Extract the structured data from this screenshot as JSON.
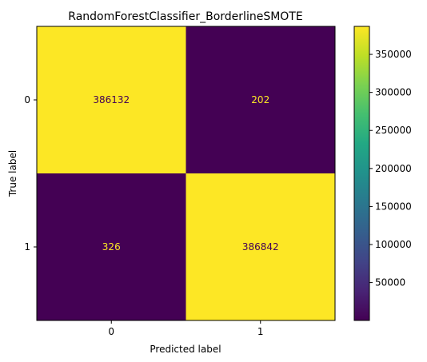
{
  "chart_data": {
    "type": "heatmap",
    "title": "RandomForestClassifier_BorderlineSMOTE",
    "xlabel": "Predicted label",
    "ylabel": "True label",
    "x_categories": [
      "0",
      "1"
    ],
    "y_categories": [
      "0",
      "1"
    ],
    "matrix": [
      [
        386132,
        202
      ],
      [
        326,
        386842
      ]
    ],
    "colorbar": {
      "colormap": "viridis",
      "range": [
        202,
        386842
      ],
      "ticks": [
        50000,
        100000,
        150000,
        200000,
        250000,
        300000,
        350000
      ]
    },
    "colors": {
      "low": "#440154",
      "high": "#fde725",
      "text_on_high": "#440154",
      "text_on_low": "#fde725"
    }
  }
}
